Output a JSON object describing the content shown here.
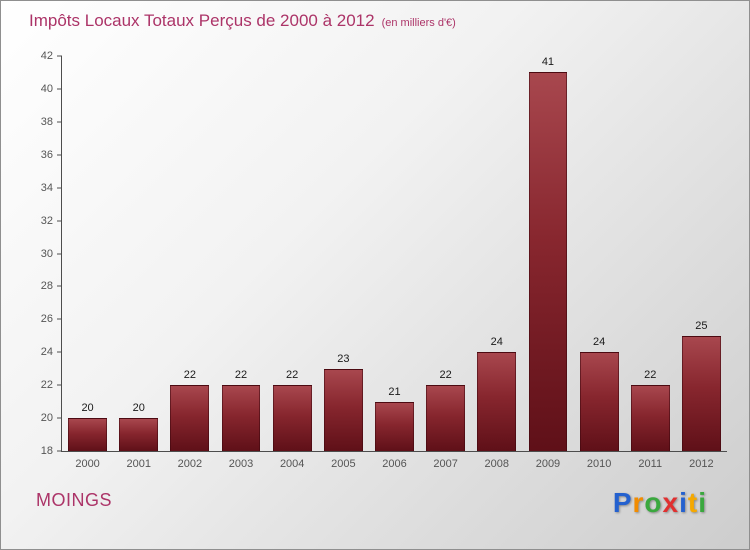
{
  "header": {
    "title": "Impôts Locaux Totaux Perçus de 2000 à 2012",
    "subtitle": "(en milliers d'€)"
  },
  "footer": {
    "location": "MOINGS",
    "logo_letters": [
      {
        "ch": "P",
        "color": "#2461cf"
      },
      {
        "ch": "r",
        "color": "#f28c00"
      },
      {
        "ch": "o",
        "color": "#3aa83e"
      },
      {
        "ch": "x",
        "color": "#e03030"
      },
      {
        "ch": "i",
        "color": "#2461cf"
      },
      {
        "ch": "t",
        "color": "#f5a800"
      },
      {
        "ch": "i",
        "color": "#3aa83e"
      }
    ]
  },
  "colors": {
    "title_color": "#ac3468",
    "bar_top": "#a8474e",
    "bar_mid": "#87262e",
    "bar_bottom": "#5f1018",
    "axis_color": "#4d4d4d"
  },
  "chart_data": {
    "type": "bar",
    "title": "Impôts Locaux Totaux Perçus de 2000 à 2012 (en milliers d'€)",
    "categories": [
      "2000",
      "2001",
      "2002",
      "2003",
      "2004",
      "2005",
      "2006",
      "2007",
      "2008",
      "2009",
      "2010",
      "2011",
      "2012"
    ],
    "values": [
      20,
      20,
      22,
      22,
      22,
      23,
      21,
      22,
      24,
      41,
      24,
      22,
      25
    ],
    "xlabel": "",
    "ylabel": "",
    "ylim": [
      18,
      42
    ],
    "ytick_step": 2,
    "grid": false,
    "legend": "none"
  }
}
